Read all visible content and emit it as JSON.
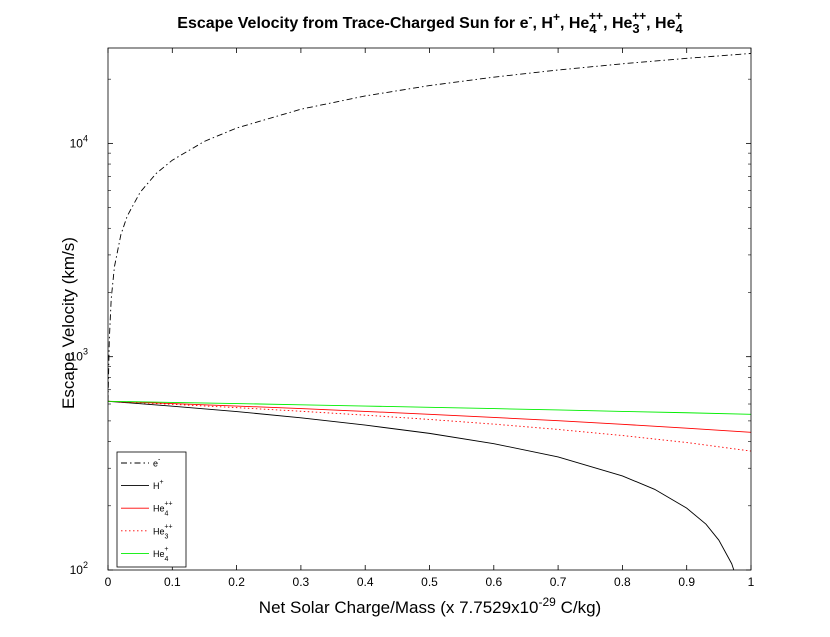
{
  "chart_data": {
    "type": "line",
    "title": {
      "main": "Escape Velocity from Trace-Charged Sun for e",
      "parts": [
        {
          "sup": "-"
        },
        {
          "text": ", H"
        },
        {
          "sup": "+"
        },
        {
          "text": ", He"
        },
        {
          "sub": "4",
          "sup": "++"
        },
        {
          "text": ", He"
        },
        {
          "sub": "3",
          "sup": "++"
        },
        {
          "text": ", He"
        },
        {
          "sub": "4",
          "sup": "+"
        }
      ]
    },
    "xlabel": {
      "text": "Net Solar Charge/Mass (x 7.7529x10",
      "sup": "-29",
      "suffix": " C/kg)"
    },
    "ylabel": "Escape Velocity (km/s)",
    "xlim": [
      0,
      1
    ],
    "ylim": [
      100,
      28000
    ],
    "yscale": "log",
    "grid": false,
    "legend_position": "bottom-left",
    "x_ticks": [
      "0",
      "0.1",
      "0.2",
      "0.3",
      "0.4",
      "0.5",
      "0.6",
      "0.7",
      "0.8",
      "0.9",
      "1"
    ],
    "y_ticks": [
      {
        "base": "10",
        "exp": "2",
        "value": 100
      },
      {
        "base": "10",
        "exp": "3",
        "value": 1000
      },
      {
        "base": "10",
        "exp": "4",
        "value": 10000
      }
    ],
    "series": [
      {
        "name": "e",
        "name_sup": "-",
        "color": "#000000",
        "dash": "dashdot",
        "x": [
          0,
          0.002,
          0.005,
          0.01,
          0.02,
          0.03,
          0.05,
          0.075,
          0.1,
          0.15,
          0.2,
          0.3,
          0.4,
          0.5,
          0.6,
          0.7,
          0.8,
          0.9,
          1.0
        ],
        "y": [
          618,
          1200,
          1870,
          2640,
          3730,
          4570,
          5900,
          7230,
          8340,
          10220,
          11800,
          14460,
          16690,
          18660,
          20440,
          22080,
          23610,
          25040,
          26400
        ]
      },
      {
        "name": "H",
        "name_sup": "+",
        "color": "#000000",
        "dash": "solid",
        "x": [
          0,
          0.1,
          0.2,
          0.3,
          0.4,
          0.5,
          0.6,
          0.7,
          0.8,
          0.85,
          0.9,
          0.93,
          0.95,
          0.97,
          0.98
        ],
        "y": [
          618,
          586,
          553,
          517,
          478,
          437,
          391,
          339,
          276,
          239,
          195,
          164,
          138,
          107,
          87
        ]
      },
      {
        "name": "He",
        "name_sub": "4",
        "name_sup": "++",
        "color": "#ff0000",
        "dash": "solid",
        "x": [
          0,
          0.1,
          0.2,
          0.3,
          0.4,
          0.5,
          0.6,
          0.7,
          0.8,
          0.9,
          1.0
        ],
        "y": [
          618,
          603,
          587,
          571,
          554,
          537,
          519,
          501,
          482,
          462,
          442
        ]
      },
      {
        "name": "He",
        "name_sub": "3",
        "name_sup": "++",
        "color": "#ff0000",
        "dash": "dotted",
        "x": [
          0,
          0.1,
          0.2,
          0.3,
          0.4,
          0.5,
          0.6,
          0.7,
          0.8,
          0.9,
          1.0
        ],
        "y": [
          618,
          598,
          577,
          555,
          532,
          508,
          483,
          456,
          427,
          396,
          361
        ]
      },
      {
        "name": "He",
        "name_sub": "4",
        "name_sup": "+",
        "color": "#00ee00",
        "dash": "solid",
        "x": [
          0,
          0.1,
          0.2,
          0.3,
          0.4,
          0.5,
          0.6,
          0.7,
          0.8,
          0.9,
          1.0
        ],
        "y": [
          618,
          610,
          603,
          595,
          587,
          579,
          571,
          563,
          554,
          546,
          537
        ]
      }
    ]
  }
}
